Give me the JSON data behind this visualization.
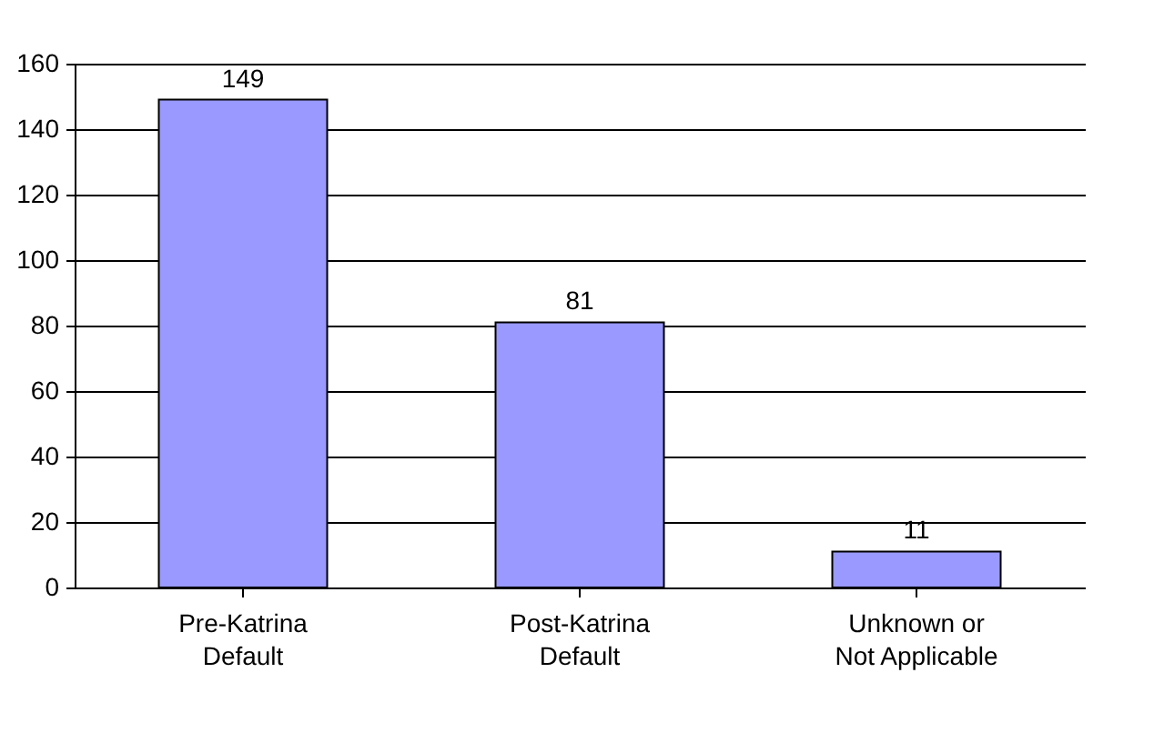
{
  "chart_data": {
    "type": "bar",
    "categories": [
      "Pre-Katrina\nDefault",
      "Post-Katrina\nDefault",
      "Unknown or\nNot Applicable"
    ],
    "values": [
      149,
      81,
      11
    ],
    "color": "#9999ff",
    "ylim": [
      0,
      160
    ],
    "yticks": [
      0,
      20,
      40,
      60,
      80,
      100,
      120,
      140,
      160
    ],
    "grid": "y",
    "data_labels": true
  }
}
